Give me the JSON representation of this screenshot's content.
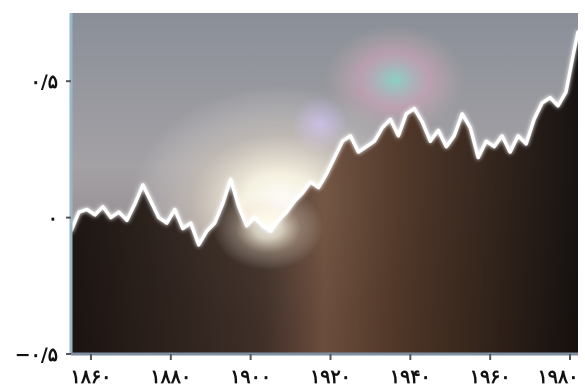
{
  "chart_data": {
    "type": "area",
    "title": "",
    "xlabel": "",
    "ylabel": "",
    "xlim": [
      1855,
      1982
    ],
    "ylim": [
      -0.5,
      0.75
    ],
    "x_ticks": [
      1860,
      1880,
      1900,
      1920,
      1940,
      1960,
      1980
    ],
    "x_tick_labels": [
      "۱۸۶۰",
      "۱۸۸۰",
      "۱۹۰۰",
      "۱۹۲۰",
      "۱۹۴۰",
      "۱۹۶۰",
      "۱۹۸۰"
    ],
    "y_ticks": [
      -0.5,
      0,
      0.5
    ],
    "y_tick_labels": [
      "−۰/۵",
      "۰",
      "۰/۵"
    ],
    "grid": false,
    "legend": "none",
    "series": [
      {
        "x": [
          1855,
          1857,
          1859,
          1861,
          1863,
          1865,
          1867,
          1869,
          1871,
          1873,
          1875,
          1877,
          1879,
          1881,
          1883,
          1885,
          1887,
          1889,
          1891,
          1893,
          1895,
          1897,
          1899,
          1901,
          1903,
          1905,
          1907,
          1909,
          1911,
          1913,
          1915,
          1917,
          1919,
          1921,
          1923,
          1925,
          1927,
          1929,
          1931,
          1933,
          1935,
          1937,
          1939,
          1941,
          1943,
          1945,
          1947,
          1949,
          1951,
          1953,
          1955,
          1957,
          1959,
          1961,
          1963,
          1965,
          1967,
          1969,
          1971,
          1973,
          1975,
          1977,
          1979,
          1981,
          1982
        ],
        "y": [
          -0.05,
          0.02,
          0.03,
          0.01,
          0.04,
          0.0,
          0.02,
          -0.01,
          0.05,
          0.12,
          0.06,
          0.0,
          -0.02,
          0.03,
          -0.04,
          -0.02,
          -0.1,
          -0.05,
          -0.02,
          0.05,
          0.14,
          0.04,
          -0.03,
          0.0,
          -0.03,
          -0.05,
          -0.01,
          0.02,
          0.06,
          0.09,
          0.13,
          0.11,
          0.16,
          0.22,
          0.28,
          0.3,
          0.24,
          0.26,
          0.28,
          0.33,
          0.36,
          0.3,
          0.38,
          0.4,
          0.35,
          0.28,
          0.32,
          0.26,
          0.3,
          0.38,
          0.33,
          0.22,
          0.28,
          0.26,
          0.3,
          0.24,
          0.3,
          0.27,
          0.36,
          0.42,
          0.44,
          0.41,
          0.46,
          0.61,
          0.68
        ]
      }
    ]
  }
}
